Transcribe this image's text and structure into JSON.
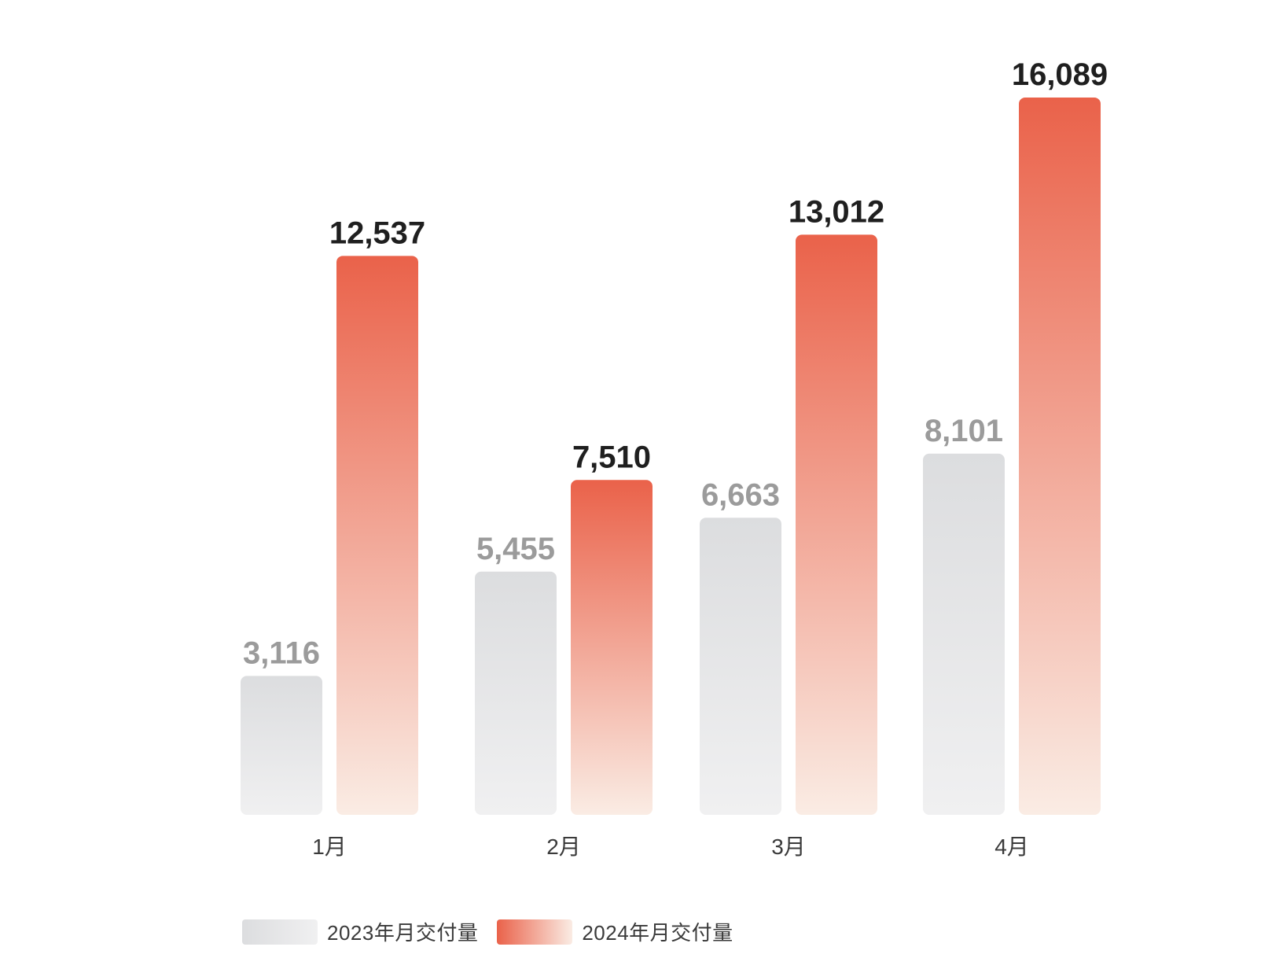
{
  "chart_data": {
    "type": "bar",
    "title": "",
    "xlabel": "",
    "ylabel": "",
    "ylim": [
      0,
      16089
    ],
    "grid": false,
    "legend_position": "bottom-left",
    "categories": [
      "1月",
      "2月",
      "3月",
      "4月"
    ],
    "series": [
      {
        "name": "2023年月交付量",
        "values": [
          3116,
          5455,
          6663,
          8101
        ],
        "labels": [
          "3,116",
          "5,455",
          "6,663",
          "8,101"
        ],
        "color_top": "#dcdddf",
        "color_bottom": "#f0f0f1",
        "label_color": "#9b9b9b"
      },
      {
        "name": "2024年月交付量",
        "values": [
          12537,
          7510,
          13012,
          16089
        ],
        "labels": [
          "12,537",
          "7,510",
          "13,012",
          "16,089"
        ],
        "color_top": "#ea624a",
        "color_bottom": "#faece4",
        "label_color": "#1f1f1f"
      }
    ]
  }
}
